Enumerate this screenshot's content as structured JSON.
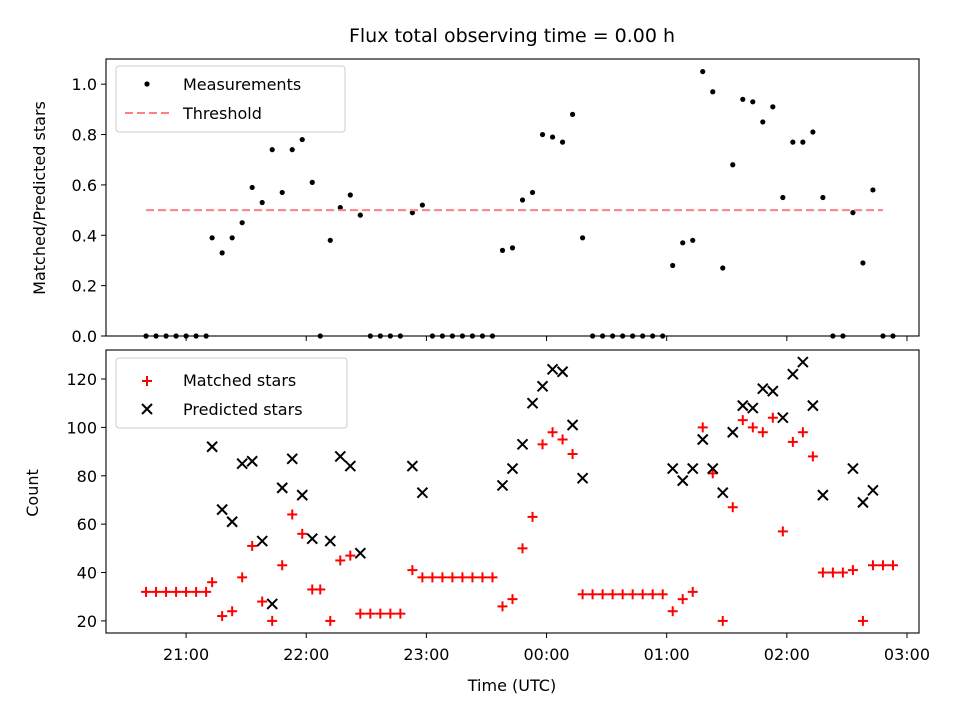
{
  "chart_data": [
    {
      "type": "scatter",
      "title": "Flux total observing time = 0.00 h",
      "ylabel": "Matched/Predicted stars",
      "ylim": [
        0,
        1.1
      ],
      "yticks": [
        "0.0",
        "0.2",
        "0.4",
        "0.6",
        "0.8",
        "1.0"
      ],
      "xlim": [
        "20:20",
        "03:06"
      ],
      "legend_position": "upper-left",
      "threshold": {
        "name": "Threshold",
        "value": 0.5,
        "from": "20:40",
        "to": "02:48",
        "color": "#ff8080"
      },
      "series": [
        {
          "name": "Measurements",
          "color": "#000000",
          "points": [
            [
              "20:40",
              0
            ],
            [
              "20:45",
              0
            ],
            [
              "20:50",
              0
            ],
            [
              "20:55",
              0
            ],
            [
              "21:00",
              0
            ],
            [
              "21:05",
              0
            ],
            [
              "21:10",
              0
            ],
            [
              "21:13",
              0.39
            ],
            [
              "21:18",
              0.33
            ],
            [
              "21:23",
              0.39
            ],
            [
              "21:28",
              0.45
            ],
            [
              "21:33",
              0.59
            ],
            [
              "21:38",
              0.53
            ],
            [
              "21:43",
              0.74
            ],
            [
              "21:48",
              0.57
            ],
            [
              "21:53",
              0.74
            ],
            [
              "21:58",
              0.78
            ],
            [
              "22:03",
              0.61
            ],
            [
              "22:07",
              0
            ],
            [
              "22:12",
              0.38
            ],
            [
              "22:17",
              0.51
            ],
            [
              "22:22",
              0.56
            ],
            [
              "22:27",
              0.48
            ],
            [
              "22:32",
              0
            ],
            [
              "22:37",
              0
            ],
            [
              "22:42",
              0
            ],
            [
              "22:47",
              0
            ],
            [
              "22:53",
              0.49
            ],
            [
              "22:58",
              0.52
            ],
            [
              "23:03",
              0
            ],
            [
              "23:08",
              0
            ],
            [
              "23:13",
              0
            ],
            [
              "23:18",
              0
            ],
            [
              "23:23",
              0
            ],
            [
              "23:28",
              0
            ],
            [
              "23:33",
              0
            ],
            [
              "23:38",
              0.34
            ],
            [
              "23:43",
              0.35
            ],
            [
              "23:48",
              0.54
            ],
            [
              "23:53",
              0.57
            ],
            [
              "23:58",
              0.8
            ],
            [
              "00:03",
              0.79
            ],
            [
              "00:08",
              0.77
            ],
            [
              "00:13",
              0.88
            ],
            [
              "00:18",
              0.39
            ],
            [
              "00:23",
              0
            ],
            [
              "00:28",
              0
            ],
            [
              "00:33",
              0
            ],
            [
              "00:38",
              0
            ],
            [
              "00:43",
              0
            ],
            [
              "00:48",
              0
            ],
            [
              "00:53",
              0
            ],
            [
              "00:58",
              0
            ],
            [
              "01:03",
              0.28
            ],
            [
              "01:08",
              0.37
            ],
            [
              "01:13",
              0.38
            ],
            [
              "01:18",
              1.05
            ],
            [
              "01:23",
              0.97
            ],
            [
              "01:28",
              0.27
            ],
            [
              "01:33",
              0.68
            ],
            [
              "01:38",
              0.94
            ],
            [
              "01:43",
              0.93
            ],
            [
              "01:48",
              0.85
            ],
            [
              "01:53",
              0.91
            ],
            [
              "01:58",
              0.55
            ],
            [
              "02:03",
              0.77
            ],
            [
              "02:08",
              0.77
            ],
            [
              "02:13",
              0.81
            ],
            [
              "02:18",
              0.55
            ],
            [
              "02:23",
              0
            ],
            [
              "02:28",
              0
            ],
            [
              "02:33",
              0.49
            ],
            [
              "02:38",
              0.29
            ],
            [
              "02:43",
              0.58
            ],
            [
              "02:48",
              0
            ],
            [
              "02:53",
              0
            ]
          ]
        }
      ]
    },
    {
      "type": "scatter",
      "xlabel": "Time (UTC)",
      "ylabel": "Count",
      "ylim": [
        15,
        132
      ],
      "yticks": [
        "20",
        "40",
        "60",
        "80",
        "100",
        "120"
      ],
      "xticks": [
        "21:00",
        "22:00",
        "23:00",
        "00:00",
        "01:00",
        "02:00",
        "03:00"
      ],
      "xlim": [
        "20:20",
        "03:06"
      ],
      "legend_position": "upper-left",
      "series": [
        {
          "name": "Matched stars",
          "marker": "plus",
          "color": "#ff0000",
          "points": [
            [
              "20:40",
              32
            ],
            [
              "20:45",
              32
            ],
            [
              "20:50",
              32
            ],
            [
              "20:55",
              32
            ],
            [
              "21:00",
              32
            ],
            [
              "21:05",
              32
            ],
            [
              "21:10",
              32
            ],
            [
              "21:13",
              36
            ],
            [
              "21:18",
              22
            ],
            [
              "21:23",
              24
            ],
            [
              "21:28",
              38
            ],
            [
              "21:33",
              51
            ],
            [
              "21:38",
              28
            ],
            [
              "21:43",
              20
            ],
            [
              "21:48",
              43
            ],
            [
              "21:53",
              64
            ],
            [
              "21:58",
              56
            ],
            [
              "22:03",
              33
            ],
            [
              "22:07",
              33
            ],
            [
              "22:12",
              20
            ],
            [
              "22:17",
              45
            ],
            [
              "22:22",
              47
            ],
            [
              "22:27",
              23
            ],
            [
              "22:32",
              23
            ],
            [
              "22:37",
              23
            ],
            [
              "22:42",
              23
            ],
            [
              "22:47",
              23
            ],
            [
              "22:53",
              41
            ],
            [
              "22:58",
              38
            ],
            [
              "23:03",
              38
            ],
            [
              "23:08",
              38
            ],
            [
              "23:13",
              38
            ],
            [
              "23:18",
              38
            ],
            [
              "23:23",
              38
            ],
            [
              "23:28",
              38
            ],
            [
              "23:33",
              38
            ],
            [
              "23:38",
              26
            ],
            [
              "23:43",
              29
            ],
            [
              "23:48",
              50
            ],
            [
              "23:53",
              63
            ],
            [
              "23:58",
              93
            ],
            [
              "00:03",
              98
            ],
            [
              "00:08",
              95
            ],
            [
              "00:13",
              89
            ],
            [
              "00:18",
              31
            ],
            [
              "00:23",
              31
            ],
            [
              "00:28",
              31
            ],
            [
              "00:33",
              31
            ],
            [
              "00:38",
              31
            ],
            [
              "00:43",
              31
            ],
            [
              "00:48",
              31
            ],
            [
              "00:53",
              31
            ],
            [
              "00:58",
              31
            ],
            [
              "01:03",
              24
            ],
            [
              "01:08",
              29
            ],
            [
              "01:13",
              32
            ],
            [
              "01:18",
              100
            ],
            [
              "01:23",
              81
            ],
            [
              "01:28",
              20
            ],
            [
              "01:33",
              67
            ],
            [
              "01:38",
              103
            ],
            [
              "01:43",
              100
            ],
            [
              "01:48",
              98
            ],
            [
              "01:53",
              104
            ],
            [
              "01:58",
              57
            ],
            [
              "02:03",
              94
            ],
            [
              "02:08",
              98
            ],
            [
              "02:13",
              88
            ],
            [
              "02:18",
              40
            ],
            [
              "02:23",
              40
            ],
            [
              "02:28",
              40
            ],
            [
              "02:33",
              41
            ],
            [
              "02:38",
              20
            ],
            [
              "02:43",
              43
            ],
            [
              "02:48",
              43
            ],
            [
              "02:53",
              43
            ]
          ]
        },
        {
          "name": "Predicted stars",
          "marker": "x",
          "color": "#000000",
          "points": [
            [
              "21:13",
              92
            ],
            [
              "21:18",
              66
            ],
            [
              "21:23",
              61
            ],
            [
              "21:28",
              85
            ],
            [
              "21:33",
              86
            ],
            [
              "21:38",
              53
            ],
            [
              "21:43",
              27
            ],
            [
              "21:48",
              75
            ],
            [
              "21:53",
              87
            ],
            [
              "21:58",
              72
            ],
            [
              "22:03",
              54
            ],
            [
              "22:12",
              53
            ],
            [
              "22:17",
              88
            ],
            [
              "22:22",
              84
            ],
            [
              "22:27",
              48
            ],
            [
              "22:53",
              84
            ],
            [
              "22:58",
              73
            ],
            [
              "23:38",
              76
            ],
            [
              "23:43",
              83
            ],
            [
              "23:48",
              93
            ],
            [
              "23:53",
              110
            ],
            [
              "23:58",
              117
            ],
            [
              "00:03",
              124
            ],
            [
              "00:08",
              123
            ],
            [
              "00:13",
              101
            ],
            [
              "00:18",
              79
            ],
            [
              "01:03",
              83
            ],
            [
              "01:08",
              78
            ],
            [
              "01:13",
              83
            ],
            [
              "01:18",
              95
            ],
            [
              "01:23",
              83
            ],
            [
              "01:28",
              73
            ],
            [
              "01:33",
              98
            ],
            [
              "01:38",
              109
            ],
            [
              "01:43",
              108
            ],
            [
              "01:48",
              116
            ],
            [
              "01:53",
              115
            ],
            [
              "01:58",
              104
            ],
            [
              "02:03",
              122
            ],
            [
              "02:08",
              127
            ],
            [
              "02:13",
              109
            ],
            [
              "02:18",
              72
            ],
            [
              "02:33",
              83
            ],
            [
              "02:38",
              69
            ],
            [
              "02:43",
              74
            ]
          ]
        }
      ]
    }
  ]
}
